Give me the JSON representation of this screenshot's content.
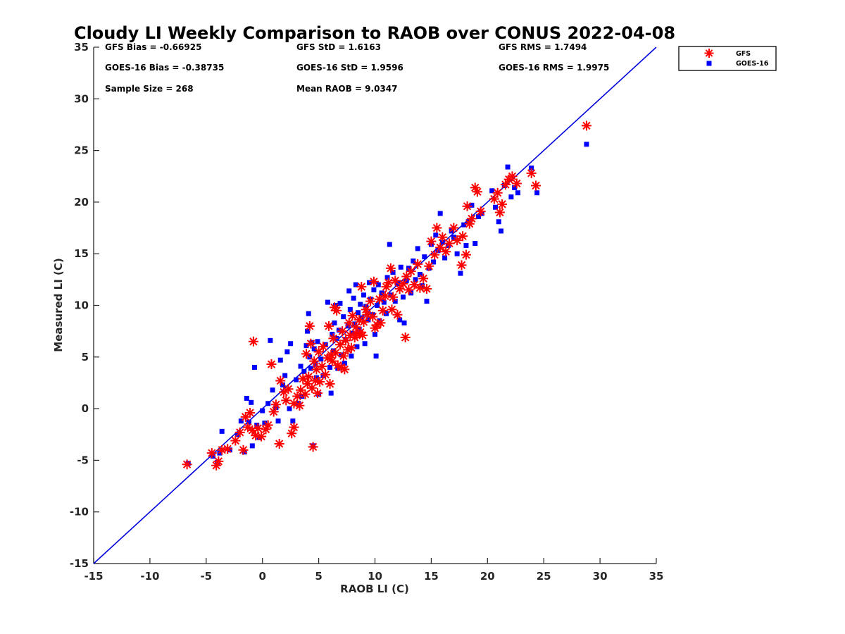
{
  "chart_data": {
    "type": "scatter",
    "title": "Cloudy LI Weekly Comparison to RAOB over CONUS 2022-04-08",
    "xlabel": "RAOB LI (C)",
    "ylabel": "Measured LI (C)",
    "xlim": [
      -15,
      35
    ],
    "ylim": [
      -15,
      35
    ],
    "xticks": [
      "-15",
      "-10",
      "-5",
      "0",
      "5",
      "10",
      "15",
      "20",
      "25",
      "30",
      "35"
    ],
    "yticks": [
      "-15",
      "-10",
      "-5",
      "0",
      "5",
      "10",
      "15",
      "20",
      "25",
      "30",
      "35"
    ],
    "grid": false,
    "legend_position": "outside-top-right",
    "reference_line": {
      "x": [
        -15,
        35
      ],
      "y": [
        -15,
        35
      ],
      "color": "#0000dd"
    },
    "stats": {
      "gfs_bias": "GFS Bias = -0.66925",
      "gfs_std": "GFS StD = 1.6163",
      "gfs_rms": "GFS RMS = 1.7494",
      "goes_bias": "GOES-16 Bias = -0.38735",
      "goes_std": "GOES-16 StD = 1.9596",
      "goes_rms": "GOES-16 RMS = 1.9975",
      "sample_size": "Sample Size = 268",
      "mean_raob": "Mean RAOB = 9.0347"
    },
    "series": [
      {
        "name": "GFS",
        "marker": "asterisk",
        "color": "#ff0000",
        "points": [
          [
            -6.7,
            -5.4
          ],
          [
            -4.5,
            -4.3
          ],
          [
            -4.1,
            -5.5
          ],
          [
            -3.9,
            -5.1
          ],
          [
            -3.6,
            -4.0
          ],
          [
            -3.1,
            -3.9
          ],
          [
            -2.4,
            -3.1
          ],
          [
            -2.0,
            -2.3
          ],
          [
            -1.7,
            -4.0
          ],
          [
            -1.5,
            -0.8
          ],
          [
            -1.3,
            -1.8
          ],
          [
            -1.1,
            -0.4
          ],
          [
            -0.9,
            -2.1
          ],
          [
            -0.8,
            6.5
          ],
          [
            -0.6,
            -2.6
          ],
          [
            -0.4,
            -1.9
          ],
          [
            -0.1,
            -2.7
          ],
          [
            0.3,
            -2.0
          ],
          [
            0.5,
            -1.6
          ],
          [
            0.8,
            4.3
          ],
          [
            1.0,
            -0.3
          ],
          [
            1.2,
            0.4
          ],
          [
            1.5,
            -3.4
          ],
          [
            1.6,
            2.7
          ],
          [
            1.9,
            1.6
          ],
          [
            2.1,
            0.8
          ],
          [
            2.3,
            1.9
          ],
          [
            2.6,
            -2.4
          ],
          [
            2.8,
            0.5
          ],
          [
            2.8,
            -1.8
          ],
          [
            3.1,
            1.2
          ],
          [
            3.3,
            0.3
          ],
          [
            3.4,
            1.8
          ],
          [
            3.6,
            2.9
          ],
          [
            3.8,
            1.4
          ],
          [
            3.9,
            5.3
          ],
          [
            4.0,
            2.4
          ],
          [
            4.1,
            3.1
          ],
          [
            4.2,
            8.0
          ],
          [
            4.3,
            6.3
          ],
          [
            4.4,
            2.0
          ],
          [
            4.5,
            -3.7
          ],
          [
            4.6,
            4.6
          ],
          [
            4.7,
            2.7
          ],
          [
            4.8,
            3.8
          ],
          [
            4.9,
            1.5
          ],
          [
            5.0,
            5.5
          ],
          [
            5.1,
            2.6
          ],
          [
            5.3,
            4.1
          ],
          [
            5.4,
            6.0
          ],
          [
            5.6,
            3.3
          ],
          [
            5.8,
            4.9
          ],
          [
            5.9,
            8.0
          ],
          [
            6.0,
            2.4
          ],
          [
            6.1,
            5.2
          ],
          [
            6.2,
            4.6
          ],
          [
            6.3,
            6.8
          ],
          [
            6.4,
            9.8
          ],
          [
            6.5,
            5.4
          ],
          [
            6.6,
            9.5
          ],
          [
            6.7,
            4.2
          ],
          [
            6.9,
            6.2
          ],
          [
            7.0,
            4.0
          ],
          [
            7.1,
            7.5
          ],
          [
            7.2,
            5.1
          ],
          [
            7.3,
            3.8
          ],
          [
            7.4,
            6.6
          ],
          [
            7.6,
            5.7
          ],
          [
            7.7,
            8.3
          ],
          [
            7.8,
            7.1
          ],
          [
            7.9,
            5.9
          ],
          [
            8.0,
            9.0
          ],
          [
            8.2,
            6.9
          ],
          [
            8.3,
            7.9
          ],
          [
            8.4,
            7.2
          ],
          [
            8.6,
            8.6
          ],
          [
            8.7,
            7.4
          ],
          [
            8.8,
            11.8
          ],
          [
            8.9,
            7.1
          ],
          [
            9.0,
            8.4
          ],
          [
            9.2,
            9.6
          ],
          [
            9.3,
            9.1
          ],
          [
            9.6,
            10.4
          ],
          [
            9.8,
            8.9
          ],
          [
            9.9,
            12.3
          ],
          [
            10.0,
            7.8
          ],
          [
            10.2,
            8.1
          ],
          [
            10.4,
            10.6
          ],
          [
            10.5,
            8.3
          ],
          [
            10.7,
            9.5
          ],
          [
            10.9,
            10.9
          ],
          [
            11.0,
            11.8
          ],
          [
            11.2,
            12.2
          ],
          [
            11.4,
            13.6
          ],
          [
            11.5,
            9.6
          ],
          [
            11.6,
            10.8
          ],
          [
            11.8,
            12.4
          ],
          [
            12.0,
            9.1
          ],
          [
            12.2,
            11.6
          ],
          [
            12.5,
            12.1
          ],
          [
            12.7,
            6.9
          ],
          [
            12.8,
            12.8
          ],
          [
            13.0,
            11.5
          ],
          [
            13.2,
            13.3
          ],
          [
            13.5,
            12.0
          ],
          [
            13.8,
            14.0
          ],
          [
            14.0,
            11.7
          ],
          [
            14.3,
            12.6
          ],
          [
            14.6,
            11.6
          ],
          [
            14.8,
            13.8
          ],
          [
            15.0,
            16.2
          ],
          [
            15.3,
            14.9
          ],
          [
            15.5,
            17.5
          ],
          [
            15.8,
            15.6
          ],
          [
            16.0,
            16.6
          ],
          [
            16.3,
            15.2
          ],
          [
            16.6,
            16.0
          ],
          [
            17.0,
            17.5
          ],
          [
            17.3,
            16.3
          ],
          [
            17.7,
            13.9
          ],
          [
            17.8,
            16.7
          ],
          [
            18.1,
            14.9
          ],
          [
            18.2,
            19.6
          ],
          [
            18.4,
            17.9
          ],
          [
            18.6,
            18.4
          ],
          [
            18.9,
            21.4
          ],
          [
            19.1,
            21.0
          ],
          [
            19.4,
            19.1
          ],
          [
            20.6,
            20.3
          ],
          [
            20.9,
            20.9
          ],
          [
            21.1,
            19.0
          ],
          [
            21.3,
            19.8
          ],
          [
            21.6,
            21.7
          ],
          [
            21.9,
            22.2
          ],
          [
            22.2,
            22.5
          ],
          [
            22.6,
            21.8
          ],
          [
            23.9,
            22.8
          ],
          [
            24.3,
            21.6
          ],
          [
            28.8,
            27.4
          ]
        ]
      },
      {
        "name": "GOES-16",
        "marker": "square",
        "color": "#0000ff",
        "points": [
          [
            -6.6,
            -5.3
          ],
          [
            -4.4,
            -4.6
          ],
          [
            -4.0,
            -5.2
          ],
          [
            -3.8,
            -4.3
          ],
          [
            -3.6,
            -2.2
          ],
          [
            -2.9,
            -4.0
          ],
          [
            -2.2,
            -2.5
          ],
          [
            -1.9,
            -1.2
          ],
          [
            -1.6,
            -4.2
          ],
          [
            -1.4,
            1.0
          ],
          [
            -1.2,
            -1.3
          ],
          [
            -1.0,
            0.6
          ],
          [
            -0.9,
            -3.6
          ],
          [
            -0.7,
            4.0
          ],
          [
            -0.5,
            -1.6
          ],
          [
            -0.3,
            -2.8
          ],
          [
            0.0,
            -0.2
          ],
          [
            0.2,
            -1.4
          ],
          [
            0.5,
            0.5
          ],
          [
            0.7,
            6.6
          ],
          [
            0.9,
            1.8
          ],
          [
            1.2,
            0.1
          ],
          [
            1.4,
            -1.2
          ],
          [
            1.6,
            4.7
          ],
          [
            1.8,
            2.3
          ],
          [
            2.0,
            3.2
          ],
          [
            2.2,
            5.5
          ],
          [
            2.4,
            0.0
          ],
          [
            2.5,
            6.3
          ],
          [
            2.7,
            -1.2
          ],
          [
            3.0,
            2.8
          ],
          [
            3.2,
            0.5
          ],
          [
            3.4,
            4.1
          ],
          [
            3.5,
            1.2
          ],
          [
            3.7,
            3.6
          ],
          [
            3.9,
            6.1
          ],
          [
            4.0,
            7.5
          ],
          [
            4.1,
            9.2
          ],
          [
            4.2,
            5.0
          ],
          [
            4.3,
            3.9
          ],
          [
            4.4,
            6.4
          ],
          [
            4.5,
            -3.6
          ],
          [
            4.6,
            5.8
          ],
          [
            4.7,
            4.3
          ],
          [
            4.8,
            3.0
          ],
          [
            4.9,
            6.5
          ],
          [
            5.0,
            1.4
          ],
          [
            5.2,
            4.8
          ],
          [
            5.4,
            3.2
          ],
          [
            5.6,
            6.2
          ],
          [
            5.8,
            10.3
          ],
          [
            6.0,
            4.0
          ],
          [
            6.1,
            1.5
          ],
          [
            6.2,
            7.2
          ],
          [
            6.3,
            5.6
          ],
          [
            6.4,
            8.3
          ],
          [
            6.5,
            10.0
          ],
          [
            6.6,
            6.8
          ],
          [
            6.7,
            3.9
          ],
          [
            6.8,
            7.6
          ],
          [
            6.9,
            10.2
          ],
          [
            7.0,
            5.2
          ],
          [
            7.2,
            8.9
          ],
          [
            7.3,
            4.4
          ],
          [
            7.4,
            6.7
          ],
          [
            7.6,
            8.0
          ],
          [
            7.7,
            11.4
          ],
          [
            7.8,
            9.6
          ],
          [
            7.9,
            5.1
          ],
          [
            8.0,
            7.3
          ],
          [
            8.1,
            10.7
          ],
          [
            8.2,
            8.2
          ],
          [
            8.3,
            12.0
          ],
          [
            8.4,
            6.0
          ],
          [
            8.5,
            9.3
          ],
          [
            8.6,
            7.7
          ],
          [
            8.7,
            10.1
          ],
          [
            8.8,
            8.8
          ],
          [
            9.0,
            11.0
          ],
          [
            9.1,
            6.3
          ],
          [
            9.2,
            9.9
          ],
          [
            9.4,
            8.6
          ],
          [
            9.5,
            12.2
          ],
          [
            9.6,
            10.6
          ],
          [
            9.8,
            9.1
          ],
          [
            9.9,
            11.5
          ],
          [
            10.0,
            7.2
          ],
          [
            10.1,
            5.1
          ],
          [
            10.2,
            10.0
          ],
          [
            10.3,
            12.0
          ],
          [
            10.4,
            8.5
          ],
          [
            10.6,
            11.2
          ],
          [
            10.8,
            10.3
          ],
          [
            11.0,
            9.2
          ],
          [
            11.1,
            12.7
          ],
          [
            11.3,
            15.9
          ],
          [
            11.4,
            11.0
          ],
          [
            11.6,
            13.2
          ],
          [
            11.8,
            10.4
          ],
          [
            12.0,
            12.1
          ],
          [
            12.2,
            8.6
          ],
          [
            12.3,
            13.7
          ],
          [
            12.5,
            10.8
          ],
          [
            12.6,
            8.3
          ],
          [
            12.8,
            12.4
          ],
          [
            13.0,
            13.6
          ],
          [
            13.2,
            11.2
          ],
          [
            13.4,
            14.3
          ],
          [
            13.6,
            12.5
          ],
          [
            13.8,
            15.5
          ],
          [
            14.0,
            13.0
          ],
          [
            14.2,
            11.9
          ],
          [
            14.4,
            14.7
          ],
          [
            14.6,
            10.4
          ],
          [
            14.8,
            13.6
          ],
          [
            15.0,
            15.9
          ],
          [
            15.2,
            14.2
          ],
          [
            15.4,
            16.8
          ],
          [
            15.6,
            15.3
          ],
          [
            15.8,
            18.9
          ],
          [
            16.0,
            16.1
          ],
          [
            16.2,
            14.6
          ],
          [
            16.5,
            15.8
          ],
          [
            16.8,
            17.2
          ],
          [
            17.0,
            16.6
          ],
          [
            17.3,
            15.0
          ],
          [
            17.6,
            13.1
          ],
          [
            17.9,
            17.8
          ],
          [
            18.1,
            15.8
          ],
          [
            18.3,
            18.1
          ],
          [
            18.6,
            19.7
          ],
          [
            18.9,
            16.0
          ],
          [
            19.2,
            18.6
          ],
          [
            19.5,
            18.9
          ],
          [
            20.4,
            21.1
          ],
          [
            20.7,
            19.5
          ],
          [
            21.0,
            18.1
          ],
          [
            21.2,
            17.2
          ],
          [
            21.5,
            21.6
          ],
          [
            21.8,
            23.4
          ],
          [
            22.1,
            20.5
          ],
          [
            22.4,
            21.4
          ],
          [
            22.7,
            20.9
          ],
          [
            23.9,
            23.3
          ],
          [
            24.4,
            20.9
          ],
          [
            28.8,
            25.6
          ]
        ]
      }
    ]
  }
}
